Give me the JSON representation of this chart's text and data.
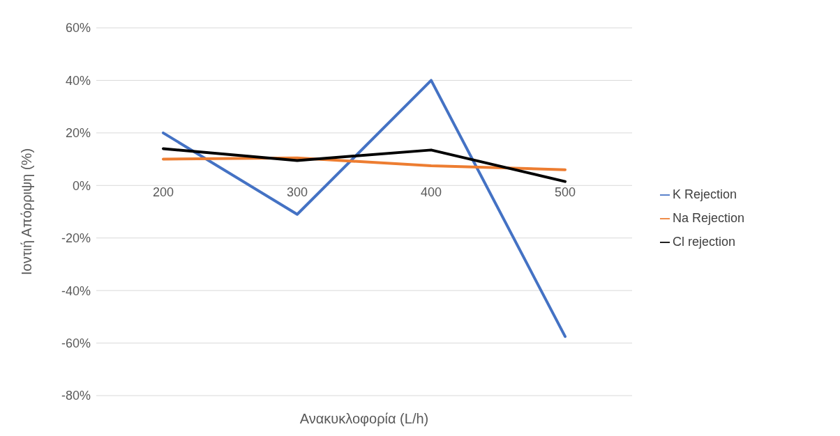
{
  "chart_data": {
    "type": "line",
    "xlabel": "Ανακυκλοφορία (L/h)",
    "ylabel": "Ιοντιή Απόρριψη (%)",
    "categories": [
      "200",
      "300",
      "400",
      "500"
    ],
    "series": [
      {
        "name": "K Rejection",
        "color": "#4472c4",
        "values": [
          20,
          -11,
          40,
          -57.5
        ]
      },
      {
        "name": "Na Rejection",
        "color": "#ed7d31",
        "values": [
          10,
          10.5,
          7.5,
          6
        ]
      },
      {
        "name": "Cl rejection",
        "color": "#000000",
        "values": [
          14,
          9.5,
          13.5,
          1.5
        ]
      }
    ],
    "ylim": [
      -80,
      60
    ],
    "yticks": [
      {
        "value": -80,
        "label": "-80%"
      },
      {
        "value": -60,
        "label": "-60%"
      },
      {
        "value": -40,
        "label": "-40%"
      },
      {
        "value": -20,
        "label": "-20%"
      },
      {
        "value": 0,
        "label": "0%"
      },
      {
        "value": 20,
        "label": "20%"
      },
      {
        "value": 40,
        "label": "40%"
      },
      {
        "value": 60,
        "label": "60%"
      }
    ],
    "grid": "y",
    "legend": "right",
    "marker": "none",
    "line_style": "solid"
  }
}
